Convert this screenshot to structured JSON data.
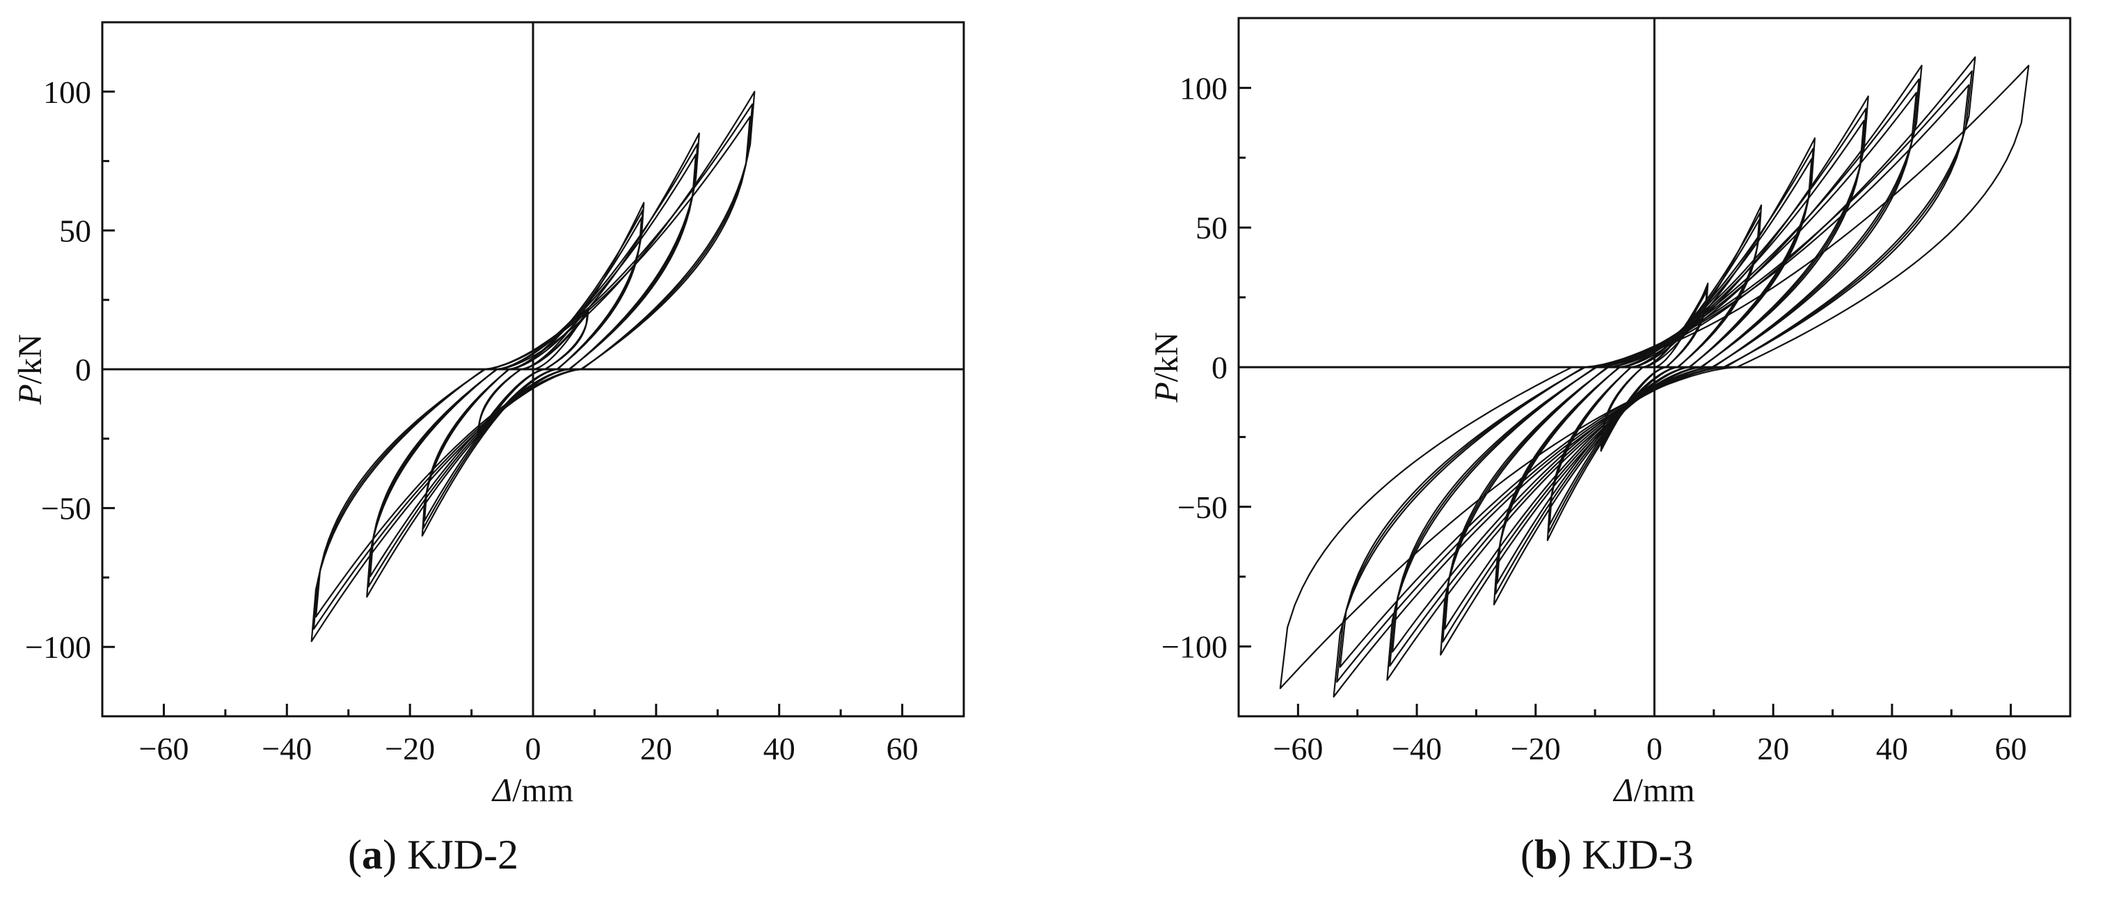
{
  "chart_data": [
    {
      "type": "line",
      "panel_label": "a",
      "specimen": "KJD-2",
      "xlabel_symbol": "Δ",
      "xlabel_unit": "/mm",
      "ylabel_symbol": "P",
      "ylabel_unit": "/kN",
      "xlim": [
        -70,
        70
      ],
      "ylim": [
        -125,
        125
      ],
      "xticks": [
        -60,
        -40,
        -20,
        0,
        20,
        40,
        60
      ],
      "yticks": [
        -100,
        -50,
        0,
        50,
        100
      ],
      "xtick_labels": [
        "−60",
        "−40",
        "−20",
        "0",
        "20",
        "40",
        "60"
      ],
      "ytick_labels": [
        "−100",
        "−50",
        "0",
        "50",
        "100"
      ],
      "grid": false,
      "line_color": "#111111",
      "cycles": [
        {
          "dmax": 9,
          "pmax": 22,
          "dmin": -9,
          "pmin": -25,
          "repeat": 3
        },
        {
          "dmax": 18,
          "pmax": 60,
          "dmin": -18,
          "pmin": -60,
          "repeat": 3
        },
        {
          "dmax": 27,
          "pmax": 85,
          "dmin": -27,
          "pmin": -82,
          "repeat": 3
        },
        {
          "dmax": 36,
          "pmax": 100,
          "dmin": -36,
          "pmin": -98,
          "repeat": 3
        }
      ]
    },
    {
      "type": "line",
      "panel_label": "b",
      "specimen": "KJD-3",
      "xlabel_symbol": "Δ",
      "xlabel_unit": "/mm",
      "ylabel_symbol": "P",
      "ylabel_unit": "/kN",
      "xlim": [
        -70,
        70
      ],
      "ylim": [
        -125,
        125
      ],
      "xticks": [
        -60,
        -40,
        -20,
        0,
        20,
        40,
        60
      ],
      "yticks": [
        -100,
        -50,
        0,
        50,
        100
      ],
      "xtick_labels": [
        "−60",
        "−40",
        "−20",
        "0",
        "20",
        "40",
        "60"
      ],
      "ytick_labels": [
        "−100",
        "−50",
        "0",
        "50",
        "100"
      ],
      "grid": false,
      "line_color": "#111111",
      "cycles": [
        {
          "dmax": 9,
          "pmax": 30,
          "dmin": -9,
          "pmin": -30,
          "repeat": 3
        },
        {
          "dmax": 18,
          "pmax": 58,
          "dmin": -18,
          "pmin": -62,
          "repeat": 3
        },
        {
          "dmax": 27,
          "pmax": 82,
          "dmin": -27,
          "pmin": -85,
          "repeat": 3
        },
        {
          "dmax": 36,
          "pmax": 97,
          "dmin": -36,
          "pmin": -103,
          "repeat": 3
        },
        {
          "dmax": 45,
          "pmax": 108,
          "dmin": -45,
          "pmin": -112,
          "repeat": 3
        },
        {
          "dmax": 54,
          "pmax": 111,
          "dmin": -54,
          "pmin": -118,
          "repeat": 3
        },
        {
          "dmax": 63,
          "pmax": 108,
          "dmin": -63,
          "pmin": -115,
          "repeat": 1
        }
      ]
    }
  ],
  "captions": [
    {
      "tag": "a",
      "open": "(",
      "close": ") ",
      "text": "KJD-2"
    },
    {
      "tag": "b",
      "open": "(",
      "close": ") ",
      "text": "KJD-3"
    }
  ]
}
